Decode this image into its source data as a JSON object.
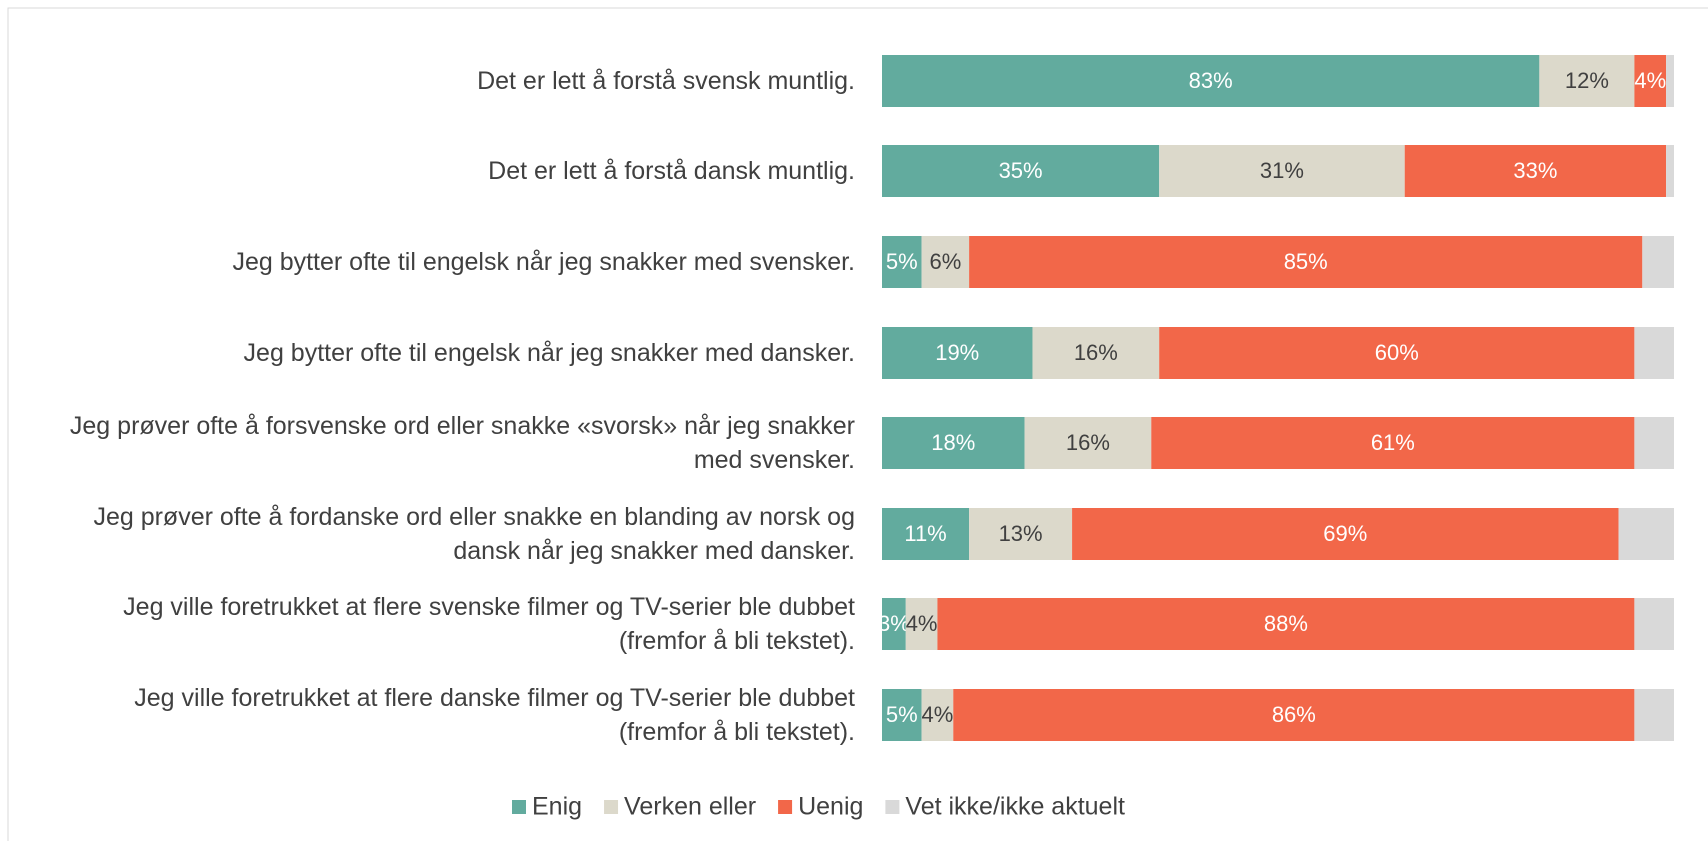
{
  "chart_data": {
    "type": "stacked-bar-horizontal",
    "categories": [
      "Det er lett å forstå svensk muntlig.",
      "Det er lett å forstå dansk muntlig.",
      "Jeg bytter ofte til engelsk når jeg snakker med svensker.",
      "Jeg bytter ofte til engelsk når jeg snakker med dansker.",
      "Jeg prøver ofte å forsvenske ord eller snakke «svorsk» når jeg snakker med svensker.",
      "Jeg prøver ofte å fordanske ord eller snakke en blanding av norsk og dansk når jeg snakker med dansker.",
      "Jeg ville foretrukket at flere svenske filmer og TV-serier ble dubbet (fremfor å bli tekstet).",
      "Jeg ville foretrukket at flere danske filmer og TV-serier ble dubbet (fremfor å bli tekstet)."
    ],
    "series": [
      {
        "name": "Enig",
        "color": "#62ab9e",
        "label_color": "#ffffff",
        "values": [
          83,
          35,
          5,
          19,
          18,
          11,
          3,
          5
        ],
        "value_labels": [
          "83%",
          "35%",
          "5%",
          "19%",
          "18%",
          "11%",
          "3%",
          "5%"
        ]
      },
      {
        "name": "Verken eller",
        "color": "#dcd9cb",
        "label_color": "#404040",
        "values": [
          12,
          31,
          6,
          16,
          16,
          13,
          4,
          4
        ],
        "value_labels": [
          "12%",
          "31%",
          "6%",
          "16%",
          "16%",
          "13%",
          "4%",
          "4%"
        ]
      },
      {
        "name": "Uenig",
        "color": "#f26749",
        "label_color": "#ffffff",
        "values": [
          4,
          33,
          85,
          60,
          61,
          69,
          88,
          86
        ],
        "value_labels": [
          "4%",
          "33%",
          "85%",
          "60%",
          "61%",
          "69%",
          "88%",
          "86%"
        ]
      },
      {
        "name": "Vet ikke/ikke aktuelt",
        "color": "#d9d9d9",
        "values": [
          1,
          1,
          4,
          5,
          5,
          7,
          5,
          5
        ]
      }
    ],
    "xlim": [
      0,
      100
    ],
    "legend": "bottom"
  }
}
